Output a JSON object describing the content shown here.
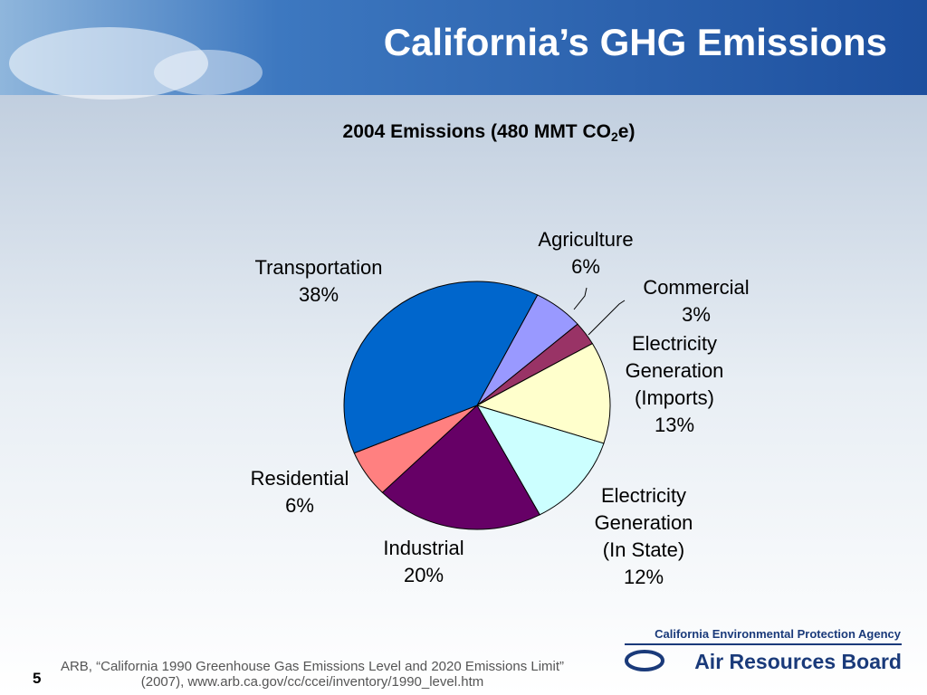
{
  "header": {
    "title": "California’s GHG Emissions"
  },
  "chart_data": {
    "type": "pie",
    "title": [
      "2004 Emissions (480 MMT CO",
      "2",
      "e)"
    ],
    "categories": [
      [
        "Agriculture"
      ],
      [
        "Commercial"
      ],
      [
        "Electricity",
        "Generation",
        "(Imports)"
      ],
      [
        "Electricity",
        "Generation",
        "(In State)"
      ],
      [
        "Industrial"
      ],
      [
        "Residential"
      ],
      [
        "Transportation"
      ]
    ],
    "values": [
      6,
      3,
      13,
      12,
      20,
      6,
      38
    ],
    "value_labels": [
      "6%",
      "3%",
      "13%",
      "12%",
      "20%",
      "6%",
      "38%"
    ],
    "colors": [
      "#9999ff",
      "#993366",
      "#ffffcc",
      "#ccffff",
      "#660066",
      "#ff8080",
      "#0066cc"
    ]
  },
  "footer": {
    "source": [
      "ARB, “California 1990 Greenhouse Gas Emissions Level and 2020 Emissions Limit”",
      "(2007), www.arb.ca.gov/cc/ccei/inventory/1990_level.htm"
    ],
    "page": "5",
    "agency": "California Environmental Protection Agency",
    "board": "Air Resources Board"
  }
}
